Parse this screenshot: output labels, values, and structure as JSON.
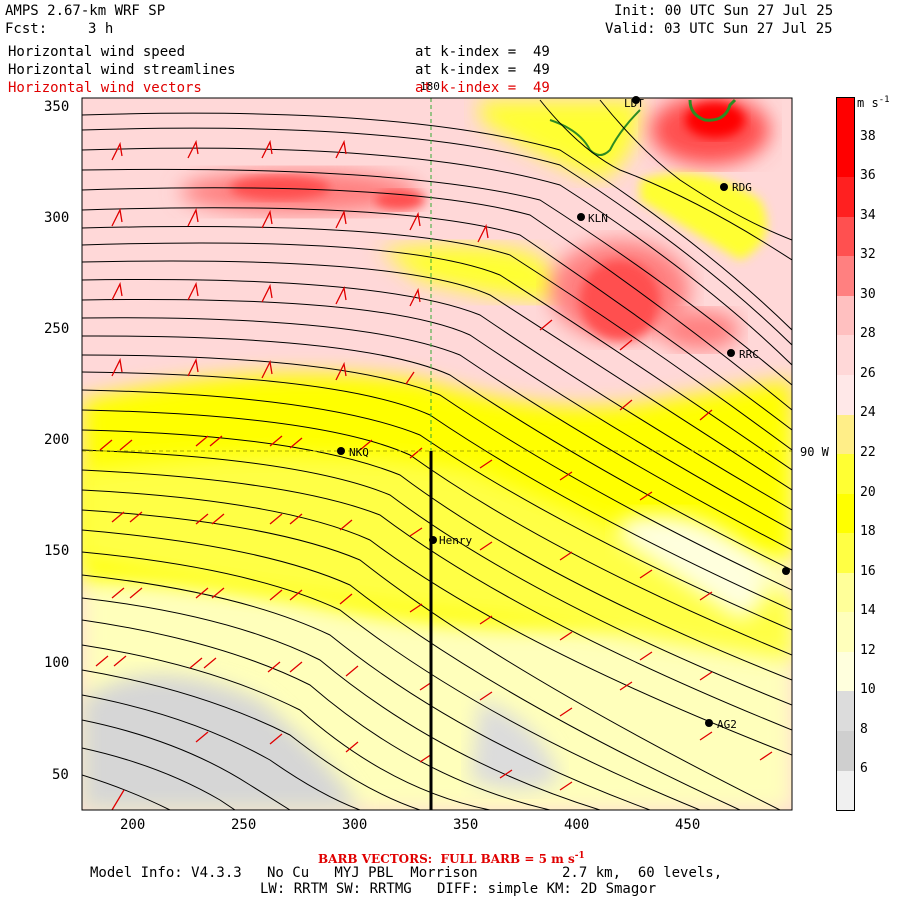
{
  "header": {
    "model": "AMPS 2.67-km WRF SP",
    "fcst_label": "Fcst:",
    "fcst_value": "3 h",
    "init": "Init: 00 UTC Sun 27 Jul 25",
    "valid": "Valid: 03 UTC Sun 27 Jul 25",
    "field1": "Horizontal wind speed",
    "field2": "Horizontal wind streamlines",
    "field3": "Horizontal wind vectors",
    "level1": "at k-index =  49",
    "level2": "at k-index =  49",
    "level3": "at k-index =  49"
  },
  "map": {
    "x_ticks": [
      "200",
      "250",
      "300",
      "350",
      "400",
      "450"
    ],
    "y_ticks": [
      "50",
      "100",
      "150",
      "200",
      "250",
      "300",
      "350"
    ],
    "meridian_label": "180",
    "longitude_label": "90 W",
    "stations": [
      "LDT",
      "RDG",
      "KLN",
      "RRC",
      "NKQ",
      "Henry",
      "AG2",
      ""
    ]
  },
  "colorbar": {
    "unit": "m s",
    "unit_exp": "-1",
    "levels": [
      "38",
      "36",
      "34",
      "32",
      "30",
      "28",
      "26",
      "24",
      "22",
      "20",
      "18",
      "16",
      "14",
      "12",
      "10",
      "8",
      "6"
    ],
    "colors": [
      "#ff0000",
      "#ff2020",
      "#ff5050",
      "#ff8080",
      "#ffc0c0",
      "#ffd8d8",
      "#ffe8e8",
      "#ffee88",
      "#ffff33",
      "#ffff00",
      "#ffff44",
      "#ffff99",
      "#ffffbb",
      "#ffffdd",
      "#dcdcdc",
      "#cfcfcf",
      "#f0f0f0"
    ]
  },
  "footer": {
    "barb": "BARB VECTORS:  FULL BARB = 5 m s",
    "barb_exp": "-1",
    "model_info": "Model Info: V4.3.3   No Cu   MYJ PBL  Morrison          2.7 km,  60 levels,",
    "model_info2": "LW: RRTM SW: RRTMG   DIFF: simple KM: 2D Smagor"
  },
  "colors": {
    "accent_red": "#e00000",
    "coast_green": "#2e8b22"
  }
}
